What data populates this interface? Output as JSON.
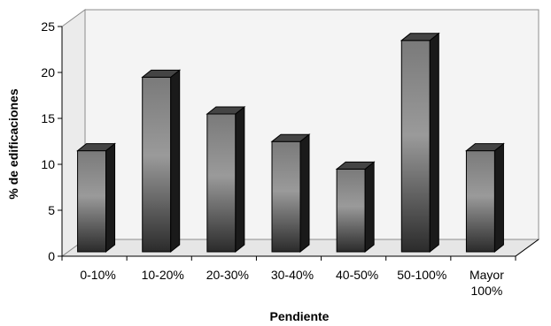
{
  "chart_data": {
    "type": "bar",
    "categories": [
      "0-10%",
      "10-20%",
      "20-30%",
      "30-40%",
      "40-50%",
      "50-100%",
      "Mayor 100%"
    ],
    "category_lines": [
      [
        "0-10%"
      ],
      [
        "10-20%"
      ],
      [
        "20-30%"
      ],
      [
        "30-40%"
      ],
      [
        "40-50%"
      ],
      [
        "50-100%"
      ],
      [
        "Mayor",
        "100%"
      ]
    ],
    "values": [
      11,
      19,
      15,
      12,
      9,
      23,
      11
    ],
    "title": "",
    "xlabel": "Pendiente",
    "ylabel": "% de edificaciones",
    "ylim": [
      0,
      25
    ],
    "yticks": [
      0,
      5,
      10,
      15,
      20,
      25
    ],
    "grid": false,
    "legend": "none",
    "style": "3d-column",
    "colors": {
      "bar_top": "#7a7a7a",
      "bar_mid": "#9a9a9a",
      "bar_bottom": "#2b2b2b",
      "bar_side": "#1a1a1a",
      "bar_cap": "#444444",
      "wall": "#f4f4f4",
      "floor": "#e6e6e6",
      "axis": "#000000"
    }
  }
}
